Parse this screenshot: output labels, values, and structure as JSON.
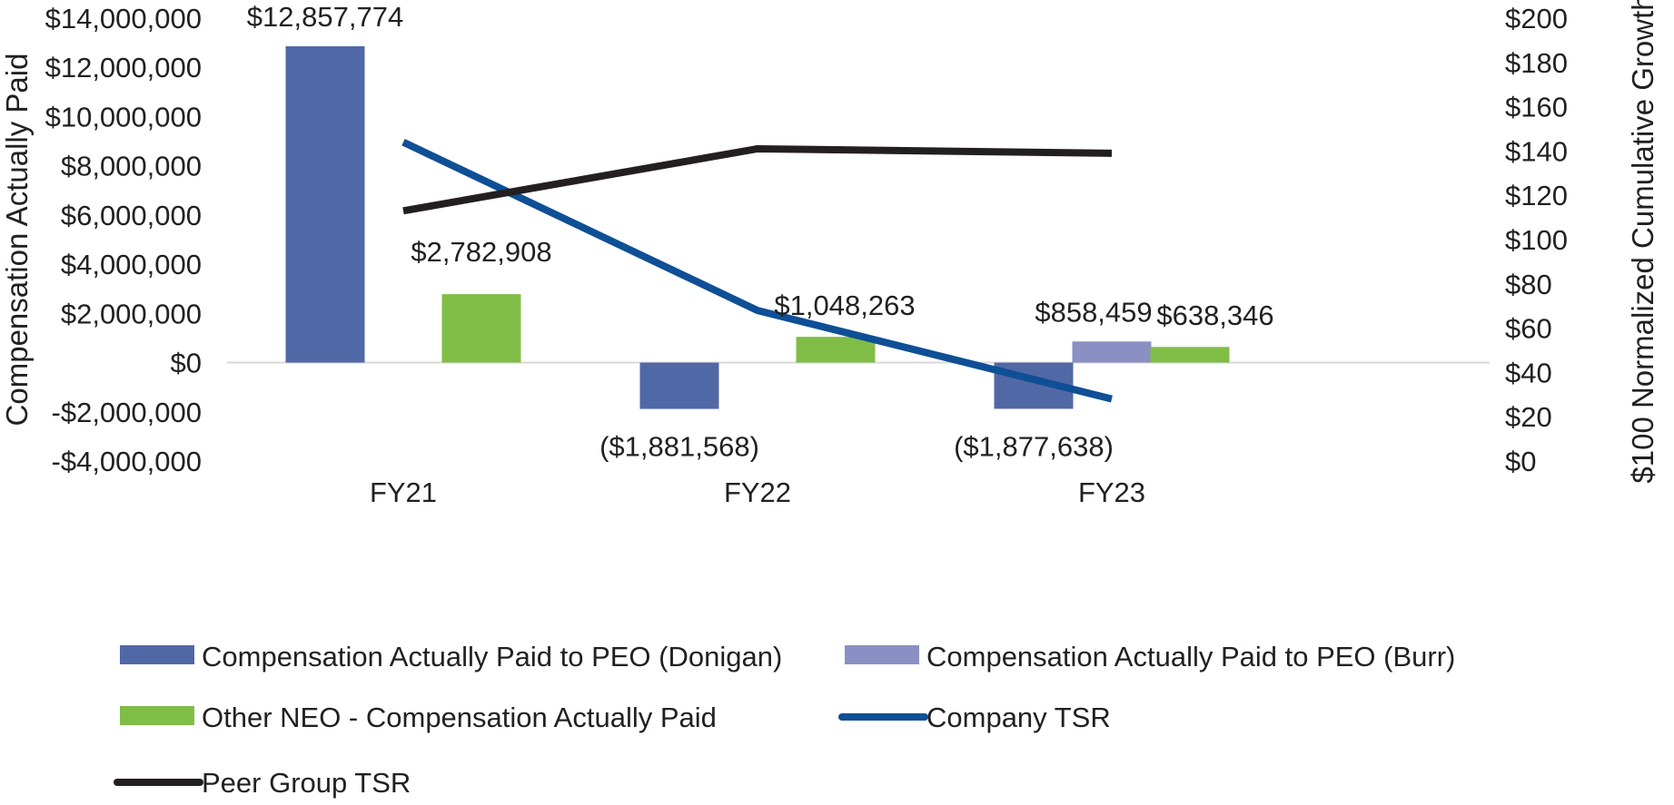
{
  "chart_data": {
    "type": "bar",
    "title": "",
    "categories": [
      "FY21",
      "FY22",
      "FY23"
    ],
    "ylabel": "Compensation Actually Paid",
    "y2label": "$100 Normalized Cumulative Growth",
    "ylim": [
      -4000000,
      14000000
    ],
    "y_ticks": [
      14000000,
      12000000,
      10000000,
      8000000,
      6000000,
      4000000,
      2000000,
      0,
      -2000000,
      -4000000
    ],
    "y_tick_labels": [
      "$14,000,000",
      "$12,000,000",
      "$10,000,000",
      "$8,000,000",
      "$6,000,000",
      "$4,000,000",
      "$2,000,000",
      "$0",
      "-$2,000,000",
      "-$4,000,000"
    ],
    "y2lim": [
      0,
      200
    ],
    "y2_ticks": [
      200,
      180,
      160,
      140,
      120,
      100,
      80,
      60,
      40,
      20,
      0
    ],
    "y2_tick_labels": [
      "$200",
      "$180",
      "$160",
      "$140",
      "$120",
      "$100",
      "$80",
      "$60",
      "$40",
      "$20",
      "$0"
    ],
    "bar_series": [
      {
        "name": "Compensation Actually Paid to PEO (Donigan)",
        "color": "#5168a6",
        "values": [
          12857774,
          -1881568,
          -1877638
        ],
        "labels": [
          "$12,857,774",
          "($1,881,568)",
          "($1,877,638)"
        ]
      },
      {
        "name": "Compensation Actually Paid to PEO (Burr)",
        "color": "#8a90c3",
        "values": [
          null,
          null,
          858459
        ],
        "labels": [
          "",
          "",
          "$858,459"
        ]
      },
      {
        "name": "Other NEO - Compensation Actually Paid",
        "color": "#80bd47",
        "values": [
          2782908,
          1048263,
          638346
        ],
        "labels": [
          "$2,782,908",
          "$1,048,263",
          "$638,346"
        ]
      }
    ],
    "line_series": [
      {
        "name": "Company TSR",
        "color": "#0e4f96",
        "axis": "right",
        "values": [
          144,
          68,
          28
        ]
      },
      {
        "name": "Peer Group TSR",
        "color": "#231f20",
        "axis": "right",
        "values": [
          113,
          141,
          139
        ]
      }
    ],
    "legend": [
      {
        "name": "Compensation Actually Paid to PEO (Donigan)",
        "kind": "bar",
        "color": "#5168a6"
      },
      {
        "name": "Compensation Actually Paid to PEO (Burr)",
        "kind": "bar",
        "color": "#8a90c3"
      },
      {
        "name": "Other NEO - Compensation Actually Paid",
        "kind": "bar",
        "color": "#80bd47"
      },
      {
        "name": "Company TSR",
        "kind": "line",
        "color": "#0e4f96"
      },
      {
        "name": "Peer Group TSR",
        "kind": "line",
        "color": "#231f20"
      }
    ],
    "legend_position": "bottom",
    "grid": false
  }
}
